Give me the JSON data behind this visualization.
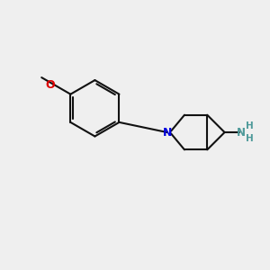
{
  "bg_color": "#efefef",
  "bond_color": "#111111",
  "N_color": "#0000dd",
  "O_color": "#dd0000",
  "NH2_color": "#4d9999",
  "line_width": 1.5,
  "figsize": [
    3.0,
    3.0
  ],
  "dpi": 100,
  "font_size": 8.5,
  "O_label": "O",
  "N_label": "N",
  "NH_label": "N",
  "H_label": "H"
}
